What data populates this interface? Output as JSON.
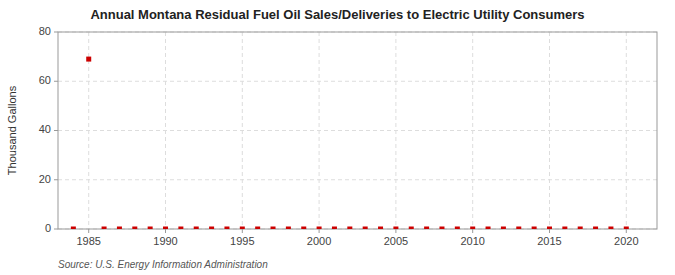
{
  "chart_data": {
    "type": "scatter",
    "title": "Annual Montana Residual Fuel Oil Sales/Deliveries to Electric Utility Consumers",
    "ylabel": "Thousand Gallons",
    "annotations": [
      "Source: U.S. Energy Information Administration"
    ],
    "x": [
      1984,
      1985,
      1986,
      1987,
      1988,
      1989,
      1990,
      1991,
      1992,
      1993,
      1994,
      1995,
      1996,
      1997,
      1998,
      1999,
      2000,
      2001,
      2002,
      2003,
      2004,
      2005,
      2006,
      2007,
      2008,
      2009,
      2010,
      2011,
      2012,
      2013,
      2014,
      2015,
      2016,
      2017,
      2018,
      2019,
      2020
    ],
    "values": [
      0,
      69,
      0,
      0,
      0,
      0,
      0,
      0,
      0,
      0,
      0,
      0,
      0,
      0,
      0,
      0,
      0,
      0,
      0,
      0,
      0,
      0,
      0,
      0,
      0,
      0,
      0,
      0,
      0,
      0,
      0,
      0,
      0,
      0,
      0,
      0,
      0
    ],
    "color": "#cc0000",
    "marker": "square",
    "xlim": [
      1983,
      2022
    ],
    "ylim": [
      0,
      80
    ],
    "xticks": [
      1985,
      1990,
      1995,
      2000,
      2005,
      2010,
      2015,
      2020
    ],
    "yticks": [
      0,
      20,
      40,
      60,
      80
    ],
    "grid": true
  }
}
